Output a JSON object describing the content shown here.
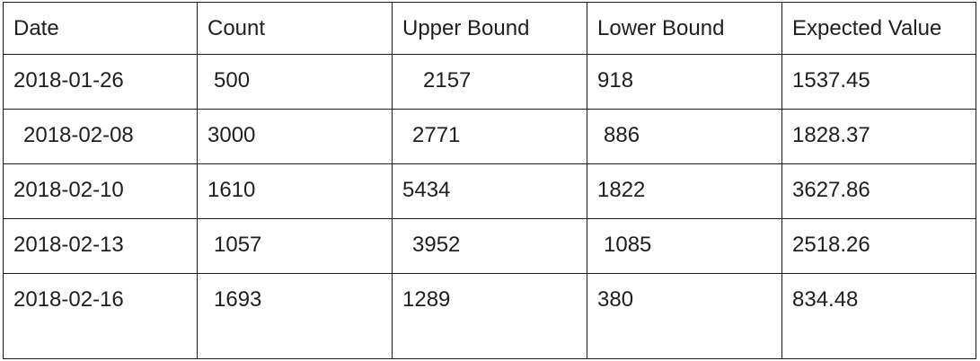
{
  "table": {
    "headers": [
      "Date",
      "Count",
      "Upper Bound",
      "Lower Bound",
      "Expected Value"
    ],
    "rows": [
      [
        "2018-01-26",
        "500",
        "2157",
        "918",
        "1537.45"
      ],
      [
        "2018-02-08",
        "3000",
        "2771",
        "886",
        "1828.37"
      ],
      [
        "2018-02-10",
        "1610",
        "5434",
        "1822",
        "3627.86"
      ],
      [
        "2018-02-13",
        "1057",
        "3952",
        "1085",
        "2518.26"
      ],
      [
        "2018-02-16",
        "1693",
        "1289",
        "380",
        "834.48"
      ]
    ]
  }
}
